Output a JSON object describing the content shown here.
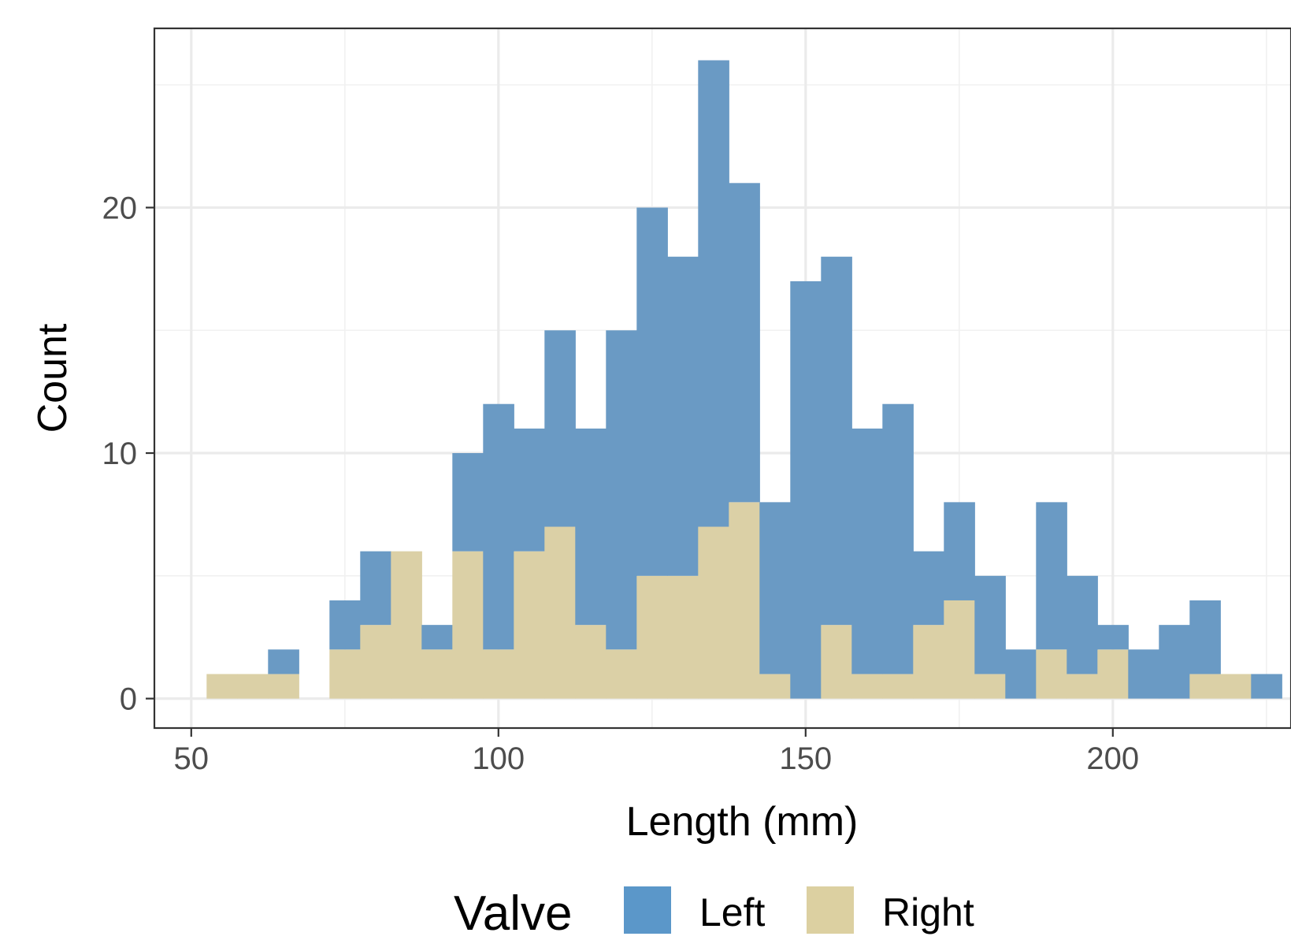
{
  "chart_data": {
    "type": "bar",
    "subtype": "stacked-histogram",
    "xlabel": "Length (mm)",
    "ylabel": "Count",
    "x_ticks": [
      50,
      100,
      150,
      200
    ],
    "y_ticks": [
      0,
      10,
      20
    ],
    "xlim": [
      44,
      229
    ],
    "ylim": [
      -1.2,
      27.3
    ],
    "binwidth": 5,
    "bin_centers": [
      55,
      60,
      65,
      70,
      75,
      80,
      85,
      90,
      95,
      100,
      105,
      110,
      115,
      120,
      125,
      130,
      135,
      140,
      145,
      150,
      155,
      160,
      165,
      170,
      175,
      180,
      185,
      190,
      195,
      200,
      205,
      210,
      215,
      220,
      225
    ],
    "grid": true,
    "legend": {
      "title": "Valve",
      "position": "bottom"
    },
    "series": [
      {
        "name": "Left",
        "color": "#6a9ac4",
        "legend_color": "#5b97c9",
        "values": [
          0,
          0,
          1,
          0,
          2,
          3,
          0,
          1,
          4,
          10,
          5,
          8,
          8,
          13,
          15,
          13,
          19,
          13,
          7,
          17,
          15,
          10,
          11,
          3,
          4,
          4,
          2,
          6,
          4,
          1,
          2,
          3,
          3,
          0,
          1
        ]
      },
      {
        "name": "Right",
        "color": "#dbd0a6",
        "legend_color": "#dcd0a1",
        "values": [
          1,
          1,
          1,
          0,
          2,
          3,
          6,
          2,
          6,
          2,
          6,
          7,
          3,
          2,
          5,
          5,
          7,
          8,
          1,
          0,
          3,
          1,
          1,
          3,
          4,
          1,
          0,
          2,
          1,
          2,
          0,
          0,
          1,
          1,
          0
        ]
      }
    ]
  }
}
